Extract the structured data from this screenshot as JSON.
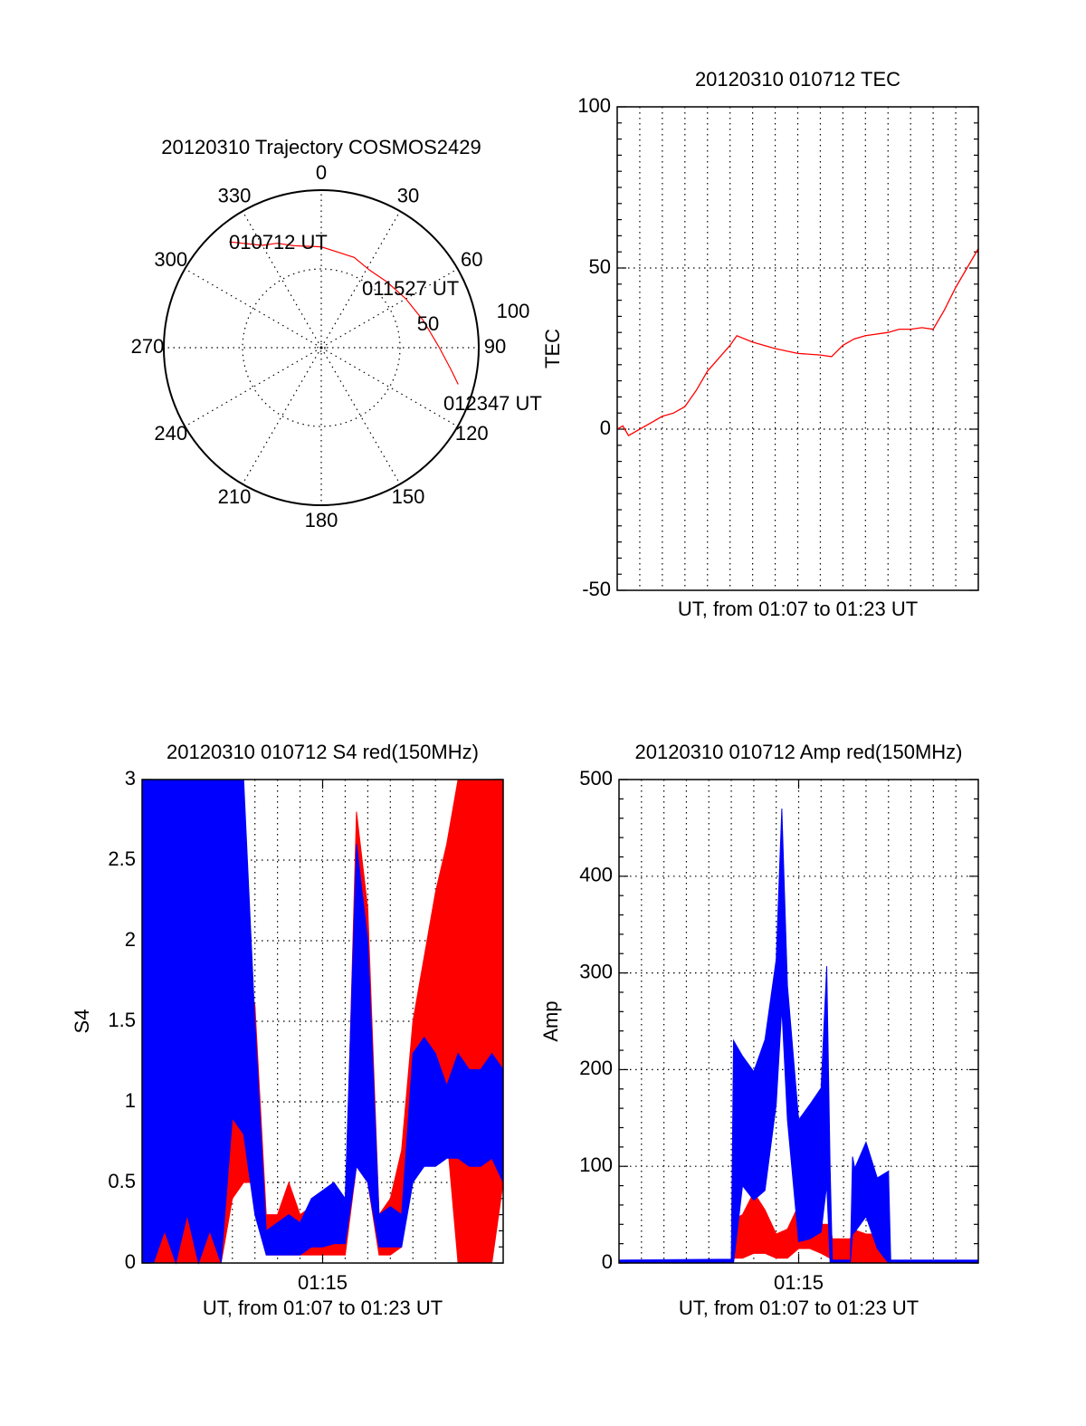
{
  "chart_data": [
    {
      "type": "polar",
      "title": "20120310 Trajectory COSMOS2429",
      "angle_labels": [
        "0",
        "30",
        "60",
        "90",
        "120",
        "150",
        "180",
        "210",
        "240",
        "270",
        "300",
        "330"
      ],
      "radial_range": [
        0,
        100
      ],
      "radial_labels": [
        "50",
        "100"
      ],
      "trajectory": {
        "color": "#ff0000",
        "azimuth_deg": [
          319,
          330,
          337,
          345,
          0,
          20,
          32,
          45,
          60,
          75,
          90,
          100,
          105
        ],
        "radius": [
          89,
          75,
          72,
          67,
          64,
          61,
          58,
          59,
          62,
          67,
          75,
          84,
          90
        ]
      },
      "annotations": [
        "010712 UT",
        "011527 UT",
        "012347 UT"
      ]
    },
    {
      "type": "line",
      "title": "20120310 010712 TEC",
      "xlabel": "UT, from 01:07 to 01:23 UT",
      "ylabel": "TEC",
      "xlim": [
        0,
        16
      ],
      "ylim": [
        -50,
        100
      ],
      "yticks": [
        "100",
        "50",
        "0",
        "-50"
      ],
      "ytick_values": [
        100,
        50,
        0,
        -50
      ],
      "grid": true,
      "series": [
        {
          "name": "TEC",
          "color": "#ff0000",
          "x": [
            0,
            0.25,
            0.5,
            0.75,
            1,
            1.5,
            2,
            2.5,
            3,
            3.5,
            4,
            4.5,
            5,
            5.3,
            6,
            7,
            8,
            9,
            9.5,
            10,
            10.5,
            11,
            12,
            12.5,
            13,
            13.5,
            14,
            14.5,
            15,
            15.5,
            16
          ],
          "y": [
            0,
            1,
            -2,
            -1,
            0,
            2,
            4,
            5,
            7,
            12,
            18,
            22,
            26,
            29,
            27,
            25,
            23.5,
            23,
            22.5,
            26,
            28,
            29,
            30,
            31,
            31,
            31.5,
            31,
            37,
            44,
            50,
            56
          ]
        }
      ]
    },
    {
      "type": "band",
      "title": "20120310 010712 S4 red(150MHz)",
      "xlabel": "UT, from 01:07 to 01:23 UT",
      "ylabel": "S4",
      "xlim": [
        0,
        16
      ],
      "ylim": [
        0,
        3
      ],
      "xticks": [
        "01:15"
      ],
      "xtick_values": [
        8
      ],
      "yticks": [
        "0",
        "0.5",
        "1",
        "1.5",
        "2",
        "2.5",
        "3"
      ],
      "ytick_values": [
        0,
        0.5,
        1,
        1.5,
        2,
        2.5,
        3
      ],
      "grid": true,
      "series": [
        {
          "name": "red",
          "color": "#ff0000",
          "x": [
            0,
            0.5,
            1,
            1.5,
            2,
            2.5,
            3,
            3.5,
            4,
            4.5,
            5,
            5.5,
            6,
            6.5,
            7,
            7.5,
            8,
            8.5,
            9,
            9.5,
            10,
            10.5,
            11,
            11.5,
            12,
            12.5,
            13,
            13.5,
            14,
            14.5,
            15,
            15.5,
            16
          ],
          "lo": [
            0,
            0,
            0,
            0,
            0,
            0,
            0,
            0,
            0.4,
            0.5,
            0.5,
            0.05,
            0.05,
            0.05,
            0.05,
            0.05,
            0.05,
            0.05,
            0.05,
            0.6,
            0.5,
            0.05,
            0.05,
            0.1,
            0.6,
            0.6,
            0.7,
            0.8,
            0,
            0,
            0,
            0,
            0.5
          ],
          "hi": [
            3,
            3,
            3,
            3,
            3,
            3,
            3,
            3,
            2.2,
            1.8,
            1.6,
            0.3,
            0.3,
            0.5,
            0.3,
            0.35,
            0.3,
            0.35,
            0.25,
            2.8,
            2.2,
            0.3,
            0.4,
            0.7,
            1.5,
            1.9,
            2.3,
            2.6,
            3,
            3,
            3,
            3,
            3
          ]
        },
        {
          "name": "blue",
          "color": "#0000ff",
          "x": [
            0,
            0.5,
            1,
            1.5,
            2,
            2.5,
            3,
            3.5,
            4,
            4.5,
            5,
            5.5,
            6,
            6.5,
            7,
            7.5,
            8,
            8.5,
            9,
            9.5,
            10,
            10.5,
            11,
            11.5,
            12,
            12.5,
            13,
            13.5,
            14,
            14.5,
            15,
            15.5,
            16
          ],
          "lo": [
            0,
            0,
            0.2,
            0,
            0.3,
            0,
            0.2,
            0,
            0.9,
            0.8,
            0.3,
            0.05,
            0.05,
            0.05,
            0.05,
            0.1,
            0.1,
            0.12,
            0.12,
            0.6,
            0.5,
            0.1,
            0.1,
            0.1,
            0.5,
            0.6,
            0.6,
            0.65,
            0.65,
            0.6,
            0.6,
            0.65,
            0.5
          ],
          "hi": [
            3,
            3,
            3,
            3,
            3,
            3,
            3,
            3,
            3,
            3,
            1.5,
            0.2,
            0.25,
            0.3,
            0.25,
            0.4,
            0.45,
            0.5,
            0.4,
            2.6,
            2.0,
            0.3,
            0.35,
            0.3,
            1.3,
            1.4,
            1.3,
            1.1,
            1.3,
            1.2,
            1.2,
            1.3,
            1.2
          ]
        }
      ]
    },
    {
      "type": "band",
      "title": "20120310 010712 Amp red(150MHz)",
      "xlabel": "UT, from 01:07 to 01:23 UT",
      "ylabel": "Amp",
      "xlim": [
        0,
        16
      ],
      "ylim": [
        0,
        500
      ],
      "xticks": [
        "01:15"
      ],
      "xtick_values": [
        8
      ],
      "yticks": [
        "0",
        "100",
        "200",
        "300",
        "400",
        "500"
      ],
      "ytick_values": [
        0,
        100,
        200,
        300,
        400,
        500
      ],
      "grid": true,
      "series": [
        {
          "name": "red",
          "color": "#ff0000",
          "x": [
            0,
            5,
            5.1,
            5.5,
            6,
            6.5,
            7,
            7.5,
            8,
            8.5,
            9,
            9.4,
            9.5,
            10.3,
            10.4,
            11,
            11.5,
            12,
            12.1,
            16
          ],
          "lo": [
            0,
            0,
            5,
            5,
            10,
            10,
            5,
            5,
            15,
            15,
            10,
            5,
            0,
            0,
            0,
            0,
            0,
            0,
            0,
            0
          ],
          "hi": [
            0,
            3,
            45,
            50,
            73,
            55,
            30,
            35,
            60,
            45,
            40,
            40,
            25,
            25,
            35,
            30,
            30,
            25,
            0,
            0
          ]
        },
        {
          "name": "blue",
          "color": "#0000ff",
          "x": [
            0,
            5,
            5.1,
            5.5,
            6,
            6.5,
            7,
            7.25,
            7.5,
            8,
            8.5,
            9,
            9.25,
            9.4,
            9.5,
            10.3,
            10.4,
            10.5,
            11,
            11.5,
            12,
            12.1,
            16
          ],
          "lo": [
            0,
            0,
            0,
            80,
            65,
            75,
            164,
            264,
            148,
            22,
            25,
            32,
            81,
            0,
            0,
            0,
            30,
            32,
            48,
            15,
            0,
            0,
            0
          ],
          "hi": [
            3,
            4,
            230,
            214,
            198,
            231,
            314,
            470,
            287,
            148,
            164,
            181,
            307,
            100,
            3,
            3,
            110,
            98,
            125,
            88,
            95,
            3,
            3
          ]
        }
      ]
    }
  ]
}
